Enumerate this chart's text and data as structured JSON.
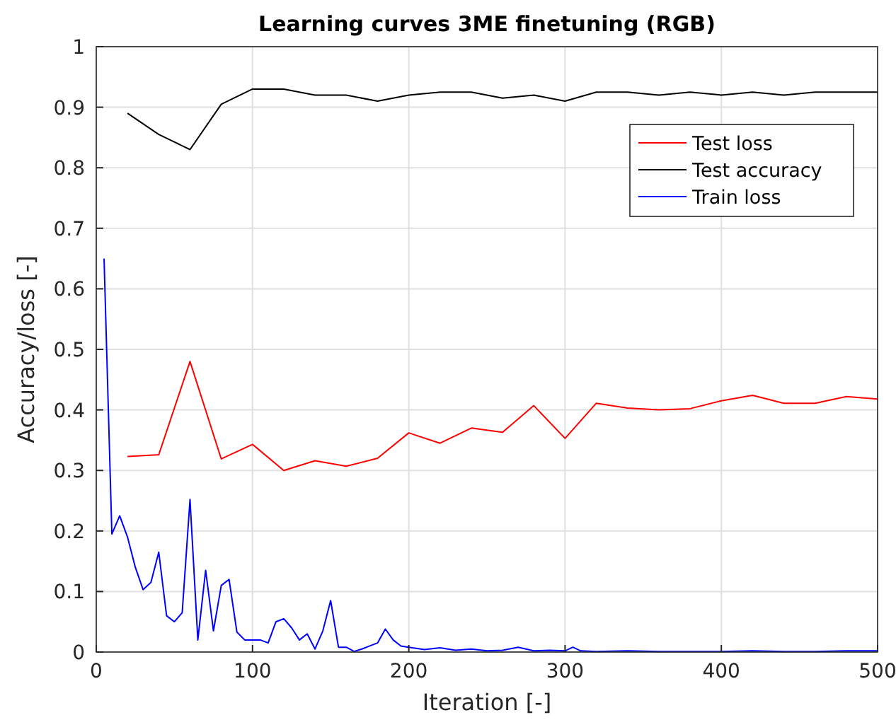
{
  "chart_data": {
    "type": "line",
    "title": "Learning curves 3ME finetuning (RGB)",
    "xlabel": "Iteration [-]",
    "ylabel": "Accuracy/loss [-]",
    "xlim": [
      0,
      500
    ],
    "ylim": [
      0,
      1
    ],
    "xticks": [
      0,
      100,
      200,
      300,
      400,
      500
    ],
    "yticks": [
      0,
      0.1,
      0.2,
      0.3,
      0.4,
      0.5,
      0.6,
      0.7,
      0.8,
      0.9,
      1
    ],
    "grid": true,
    "legend": "top right",
    "marker": "none",
    "line_style": "solid",
    "series": [
      {
        "name": "Test loss",
        "color": "#ff0000",
        "x": [
          20,
          40,
          60,
          80,
          100,
          120,
          140,
          160,
          180,
          200,
          220,
          240,
          260,
          280,
          300,
          320,
          340,
          360,
          380,
          400,
          420,
          440,
          460,
          480,
          500
        ],
        "values": [
          0.323,
          0.326,
          0.48,
          0.319,
          0.343,
          0.3,
          0.316,
          0.307,
          0.32,
          0.362,
          0.345,
          0.37,
          0.363,
          0.407,
          0.353,
          0.411,
          0.403,
          0.4,
          0.402,
          0.415,
          0.424,
          0.411,
          0.411,
          0.422,
          0.418
        ]
      },
      {
        "name": "Test accuracy",
        "color": "#000000",
        "x": [
          20,
          40,
          60,
          80,
          100,
          120,
          140,
          160,
          180,
          200,
          220,
          240,
          260,
          280,
          300,
          320,
          340,
          360,
          380,
          400,
          420,
          440,
          460,
          480,
          500
        ],
        "values": [
          0.89,
          0.855,
          0.83,
          0.905,
          0.93,
          0.93,
          0.92,
          0.92,
          0.91,
          0.92,
          0.925,
          0.925,
          0.915,
          0.92,
          0.91,
          0.925,
          0.925,
          0.92,
          0.925,
          0.92,
          0.925,
          0.92,
          0.925,
          0.925,
          0.925
        ]
      },
      {
        "name": "Train loss",
        "color": "#0000ff",
        "x": [
          5,
          10,
          15,
          20,
          25,
          30,
          35,
          40,
          45,
          50,
          55,
          60,
          65,
          70,
          75,
          80,
          85,
          90,
          95,
          100,
          105,
          110,
          115,
          120,
          125,
          130,
          135,
          140,
          145,
          150,
          155,
          160,
          165,
          170,
          175,
          180,
          185,
          190,
          195,
          200,
          210,
          220,
          230,
          240,
          250,
          260,
          270,
          280,
          290,
          300,
          305,
          310,
          320,
          340,
          360,
          380,
          400,
          420,
          440,
          460,
          480,
          500
        ],
        "values": [
          0.65,
          0.195,
          0.225,
          0.19,
          0.14,
          0.103,
          0.115,
          0.165,
          0.06,
          0.05,
          0.065,
          0.252,
          0.02,
          0.135,
          0.035,
          0.11,
          0.12,
          0.033,
          0.02,
          0.02,
          0.02,
          0.015,
          0.05,
          0.055,
          0.04,
          0.02,
          0.03,
          0.005,
          0.035,
          0.085,
          0.008,
          0.008,
          0.001,
          0.005,
          0.01,
          0.015,
          0.038,
          0.02,
          0.01,
          0.008,
          0.004,
          0.007,
          0.003,
          0.005,
          0.002,
          0.003,
          0.008,
          0.002,
          0.003,
          0.002,
          0.008,
          0.002,
          0.001,
          0.002,
          0.001,
          0.001,
          0.001,
          0.002,
          0.001,
          0.001,
          0.002,
          0.002
        ]
      }
    ]
  }
}
